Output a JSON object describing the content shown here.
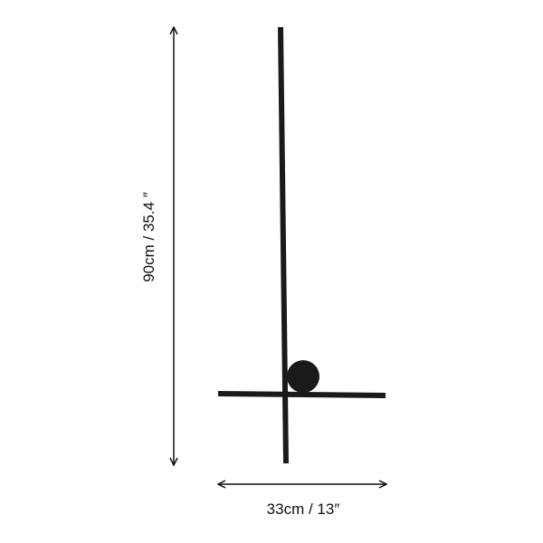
{
  "dimensions": {
    "height_label": "90cm / 35.4 ″",
    "width_label": "33cm / 13″"
  },
  "colors": {
    "product": "#1a1a1a",
    "arrow": "#111111",
    "background": "#ffffff"
  }
}
